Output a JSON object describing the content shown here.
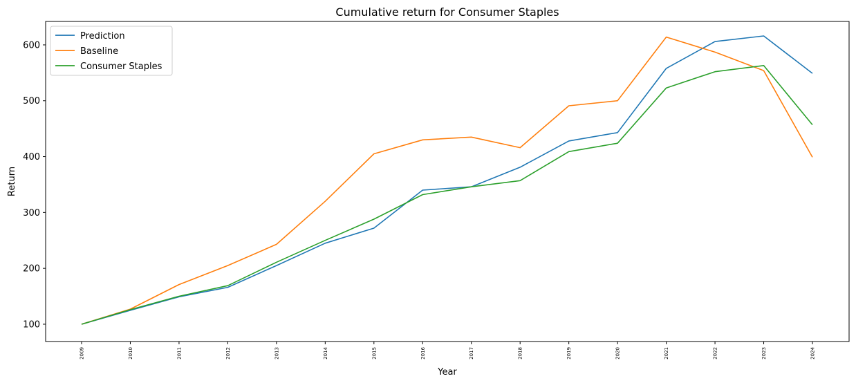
{
  "chart_data": {
    "type": "line",
    "title": "Cumulative return for Consumer Staples",
    "xlabel": "Year",
    "ylabel": "Return",
    "x": [
      "2009",
      "2010",
      "2011",
      "2012",
      "2013",
      "2014",
      "2015",
      "2016",
      "2017",
      "2018",
      "2019",
      "2020",
      "2021",
      "2022",
      "2023",
      "2024"
    ],
    "series": [
      {
        "name": "Prediction",
        "color": "#1f77b4",
        "values": [
          100,
          125,
          149,
          166,
          205,
          245,
          272,
          340,
          346,
          381,
          428,
          443,
          558,
          606,
          616,
          549
        ]
      },
      {
        "name": "Baseline",
        "color": "#ff7f0e",
        "values": [
          100,
          127,
          171,
          205,
          243,
          320,
          405,
          430,
          435,
          416,
          491,
          500,
          614,
          587,
          554,
          399
        ]
      },
      {
        "name": "Consumer Staples",
        "color": "#2ca02c",
        "values": [
          100,
          126,
          150,
          169,
          211,
          250,
          288,
          332,
          346,
          357,
          409,
          424,
          523,
          552,
          563,
          457
        ]
      }
    ],
    "yticks": [
      100,
      200,
      300,
      400,
      500,
      600
    ],
    "ylim": [
      69,
      642
    ],
    "grid": false,
    "legend": "top-left"
  }
}
